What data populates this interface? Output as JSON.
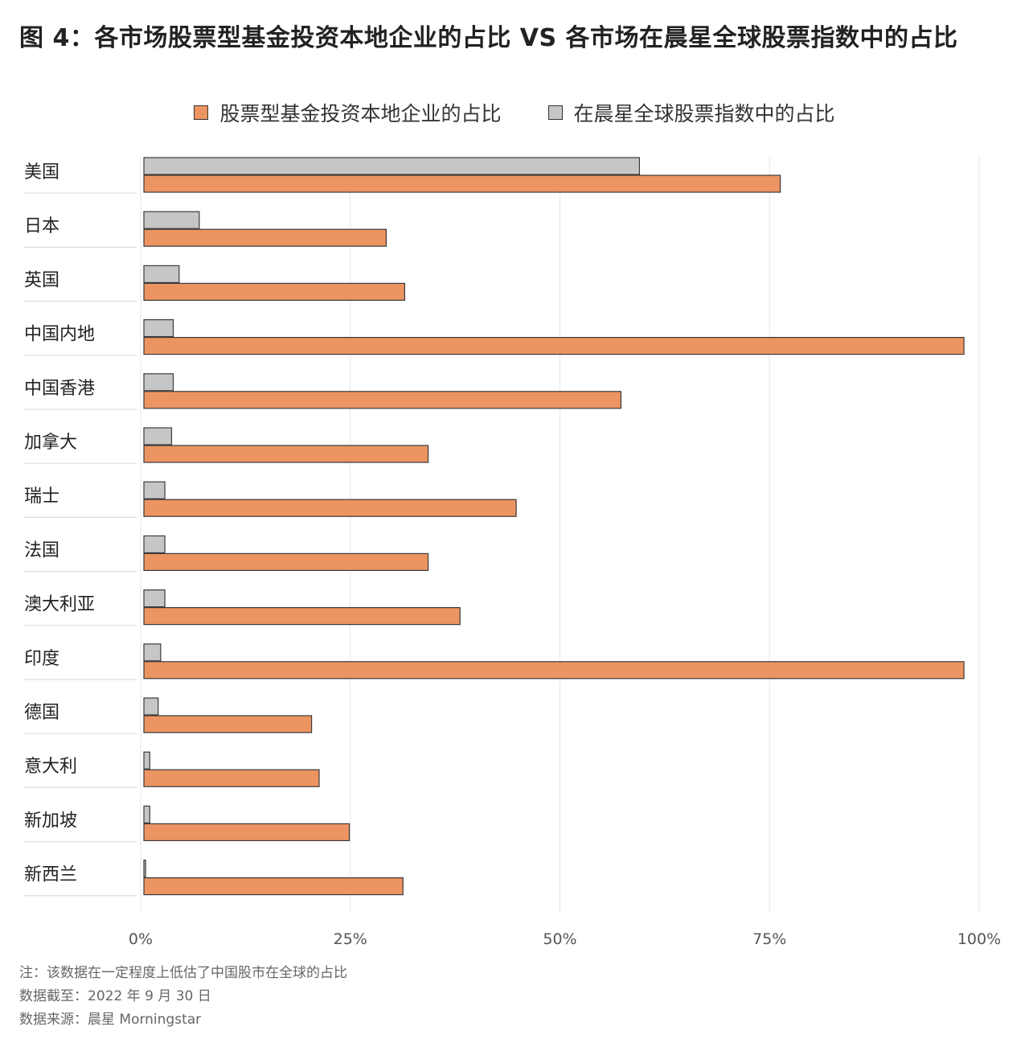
{
  "title": "图 4：各市场股票型基金投资本地企业的占比 VS 各市场在晨星全球股票指数中的占比",
  "colors": {
    "local": "#EC9462",
    "index": "#C6C6C6",
    "outline": "#3a3a3a",
    "grid": "#e6e6e6"
  },
  "chart_data": {
    "type": "bar",
    "orientation": "horizontal",
    "categories": [
      "美国",
      "日本",
      "英国",
      "中国内地",
      "中国香港",
      "加拿大",
      "瑞士",
      "法国",
      "澳大利亚",
      "印度",
      "德国",
      "意大利",
      "新加坡",
      "新西兰"
    ],
    "series": [
      {
        "name": "股票型基金投资本地企业的占比",
        "values": [
          75.9,
          28.9,
          31.1,
          97.8,
          56.9,
          33.9,
          44.4,
          33.9,
          37.7,
          97.8,
          20.0,
          20.9,
          24.5,
          30.9
        ]
      },
      {
        "name": "在晨星全球股票指数中的占比",
        "values": [
          59.1,
          6.6,
          4.2,
          3.5,
          3.5,
          3.3,
          2.5,
          2.5,
          2.5,
          2.0,
          1.7,
          0.7,
          0.7,
          0.2
        ]
      }
    ],
    "xlim": [
      0,
      100
    ],
    "xticks": [
      "0%",
      "25%",
      "50%",
      "75%",
      "100%"
    ],
    "grid": true,
    "legend": "top"
  },
  "notes": [
    "注：该数据在一定程度上低估了中国股市在全球的占比",
    "数据截至：2022 年 9 月 30 日",
    "数据来源：晨星 Morningstar"
  ]
}
